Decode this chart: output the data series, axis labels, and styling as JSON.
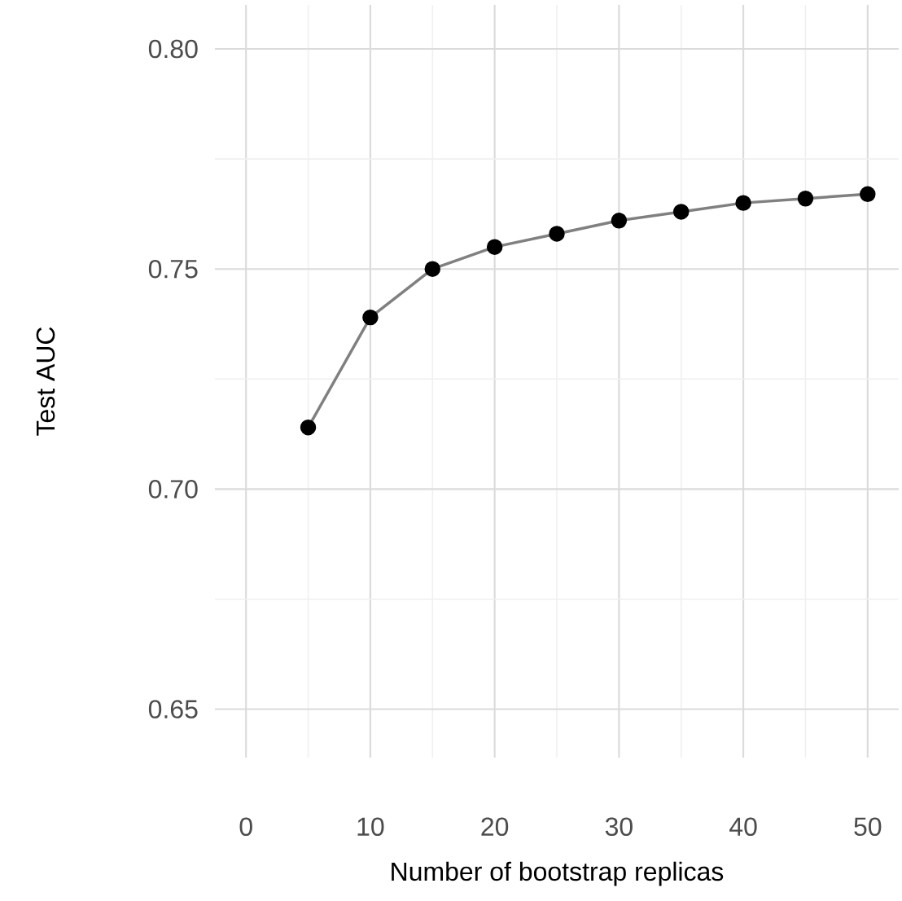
{
  "chart_data": {
    "type": "line",
    "xlabel": "Number of bootstrap replicas",
    "ylabel": "Test AUC",
    "x": [
      5,
      10,
      15,
      20,
      25,
      30,
      35,
      40,
      45,
      50
    ],
    "series": [
      {
        "color": "#808080",
        "values": [
          0.714,
          0.739,
          0.75,
          0.755,
          0.758,
          0.761,
          0.763,
          0.765,
          0.766,
          0.767
        ]
      }
    ],
    "marker": "circle",
    "line_style": "solid",
    "grid": true,
    "xlim": [
      -2.5,
      52.5
    ],
    "ylim": [
      0.639,
      0.81
    ],
    "xticks": [
      0,
      10,
      20,
      30,
      40,
      50
    ],
    "yticks": [
      {
        "value": 0.65,
        "label": "0.65"
      },
      {
        "value": 0.7,
        "label": "0.70"
      },
      {
        "value": 0.75,
        "label": "0.75"
      },
      {
        "value": 0.8,
        "label": "0.80"
      }
    ]
  }
}
